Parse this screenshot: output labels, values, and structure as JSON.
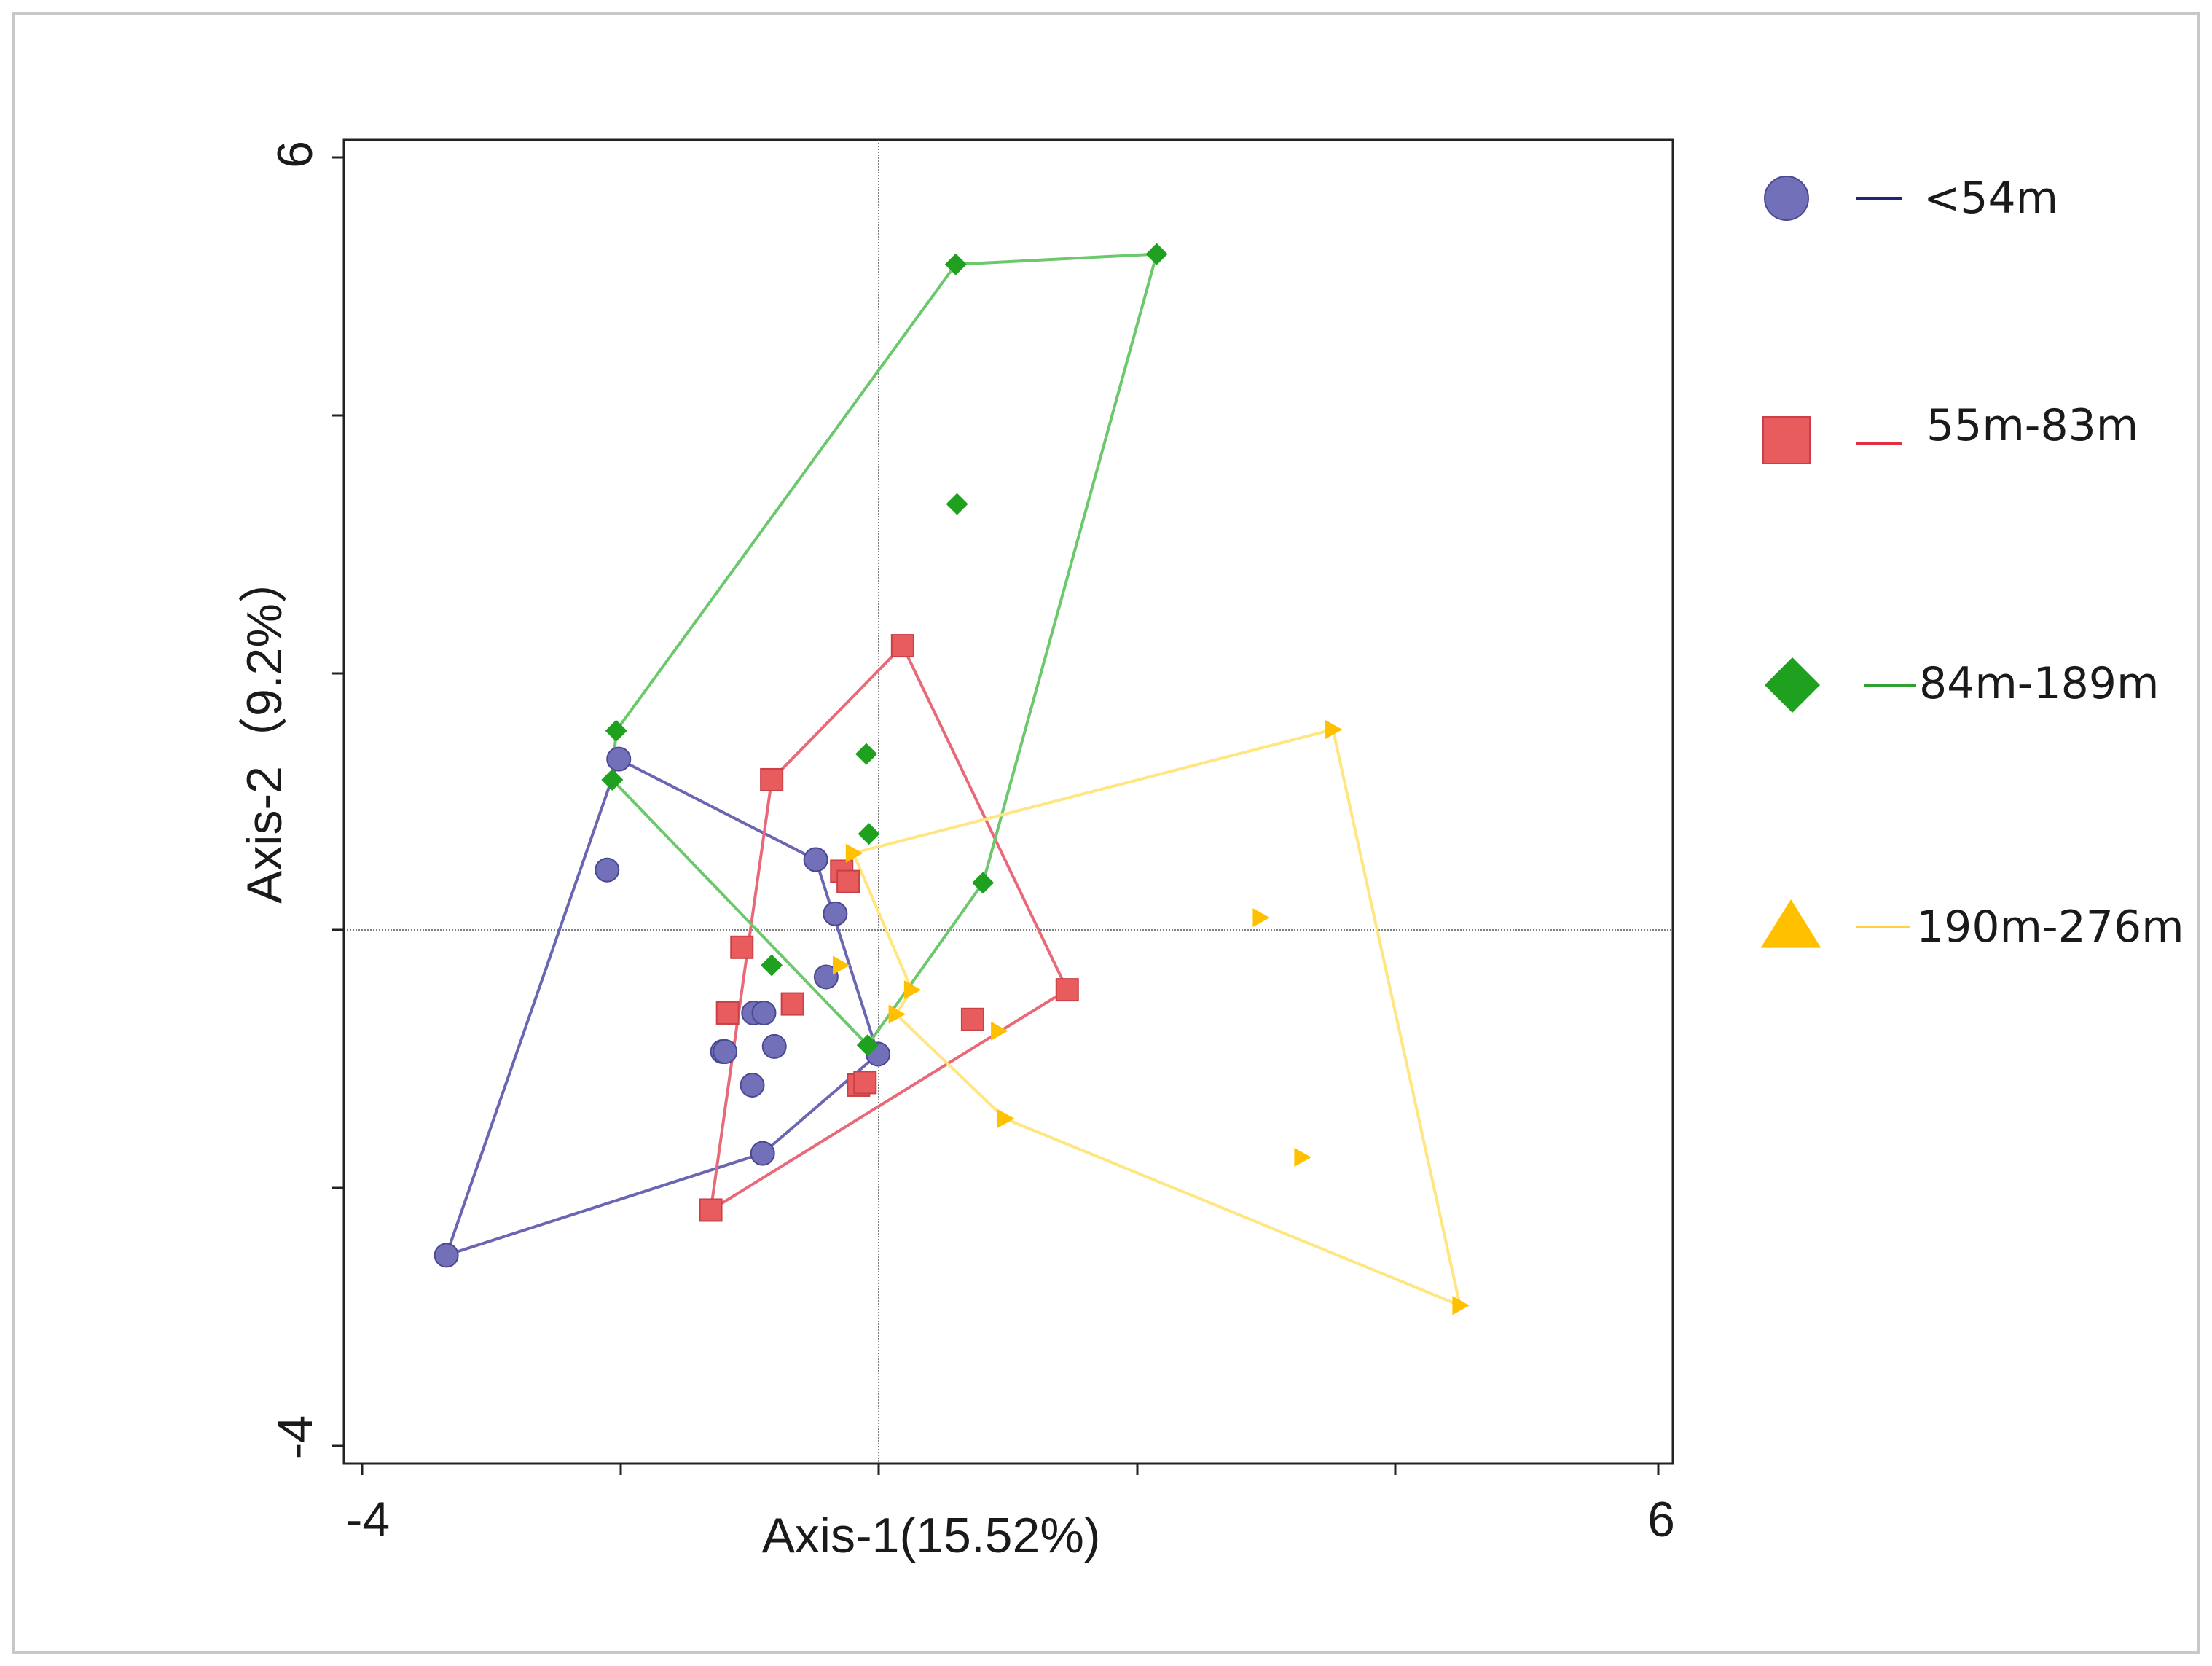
{
  "chart_data": {
    "type": "scatter",
    "title": "",
    "xlabel": "Axis-1(15.52%)",
    "ylabel": "Axis-2（9.2%）",
    "xlim": [
      -4,
      6
    ],
    "ylim": [
      -4,
      6
    ],
    "x_tick_labels": [
      "-4",
      "6"
    ],
    "y_tick_labels": [
      "6",
      "-4"
    ],
    "reference_lines": {
      "x": 0,
      "y": 0
    },
    "grid": false,
    "legend_position": "right",
    "series": [
      {
        "name": "<54m",
        "marker": "circle",
        "color": "#7270B8",
        "line_color": "#6A66B2",
        "legend_line_color": "#23237A",
        "points": [
          [
            -3.35,
            -2.52
          ],
          [
            -2.02,
            1.33
          ],
          [
            -2.11,
            0.47
          ],
          [
            -0.5,
            0.55
          ],
          [
            -0.35,
            0.13
          ],
          [
            -0.42,
            -0.36
          ],
          [
            -0.98,
            -0.64
          ],
          [
            -1.2,
            -0.94
          ],
          [
            -0.82,
            -0.9
          ],
          [
            -0.99,
            -1.2
          ],
          [
            -0.91,
            -1.73
          ],
          [
            -1.22,
            -0.94
          ],
          [
            -0.02,
            -0.96
          ],
          [
            -0.9,
            -0.64
          ],
          [
            -1.2,
            -0.94
          ]
        ],
        "hull": [
          [
            -3.35,
            -2.52
          ],
          [
            -2.02,
            1.33
          ],
          [
            -0.5,
            0.55
          ],
          [
            -0.02,
            -0.96
          ],
          [
            -0.91,
            -1.73
          ]
        ]
      },
      {
        "name": "55m-83m",
        "marker": "square",
        "color": "#E85C5E",
        "line_color": "#E86A78",
        "legend_line_color": "#E03040",
        "points": [
          [
            0.17,
            2.21
          ],
          [
            -0.84,
            1.17
          ],
          [
            -1.07,
            -0.13
          ],
          [
            -1.18,
            -0.64
          ],
          [
            -0.68,
            -0.57
          ],
          [
            -0.3,
            0.46
          ],
          [
            -0.25,
            0.38
          ],
          [
            1.44,
            -0.46
          ],
          [
            0.71,
            -0.69
          ],
          [
            -0.17,
            -1.2
          ],
          [
            -0.12,
            -1.18
          ],
          [
            -1.31,
            -2.17
          ]
        ],
        "hull": [
          [
            0.17,
            2.21
          ],
          [
            1.44,
            -0.46
          ],
          [
            -1.31,
            -2.17
          ],
          [
            -0.84,
            1.17
          ]
        ]
      },
      {
        "name": "84m-189m",
        "marker": "diamond",
        "color": "#1FA01F",
        "line_color": "#6CC86C",
        "legend_line_color": "#30A030",
        "points": [
          [
            0.58,
            5.17
          ],
          [
            2.13,
            5.25
          ],
          [
            0.59,
            3.31
          ],
          [
            -2.04,
            1.55
          ],
          [
            -2.07,
            1.17
          ],
          [
            -0.11,
            1.37
          ],
          [
            -0.09,
            0.75
          ],
          [
            0.79,
            0.37
          ],
          [
            -0.84,
            -0.27
          ],
          [
            -0.1,
            -0.89
          ]
        ],
        "hull": [
          [
            0.58,
            5.17
          ],
          [
            2.13,
            5.25
          ],
          [
            0.79,
            0.37
          ],
          [
            -0.1,
            -0.89
          ],
          [
            -2.07,
            1.17
          ],
          [
            -2.04,
            1.55
          ]
        ]
      },
      {
        "name": "190m-276m",
        "marker": "triangle",
        "color": "#FFC000",
        "line_color": "#FFE680",
        "legend_line_color": "#FFD040",
        "points": [
          [
            3.49,
            1.56
          ],
          [
            -0.21,
            0.6
          ],
          [
            2.93,
            0.1
          ],
          [
            -0.31,
            -0.27
          ],
          [
            0.24,
            -0.46
          ],
          [
            0.12,
            -0.65
          ],
          [
            0.91,
            -0.78
          ],
          [
            0.96,
            -1.46
          ],
          [
            3.25,
            -1.76
          ],
          [
            4.47,
            -2.91
          ]
        ],
        "hull": [
          [
            3.49,
            1.56
          ],
          [
            4.47,
            -2.91
          ],
          [
            0.96,
            -1.46
          ],
          [
            0.12,
            -0.65
          ],
          [
            0.24,
            -0.46
          ],
          [
            -0.21,
            0.6
          ]
        ]
      }
    ]
  }
}
